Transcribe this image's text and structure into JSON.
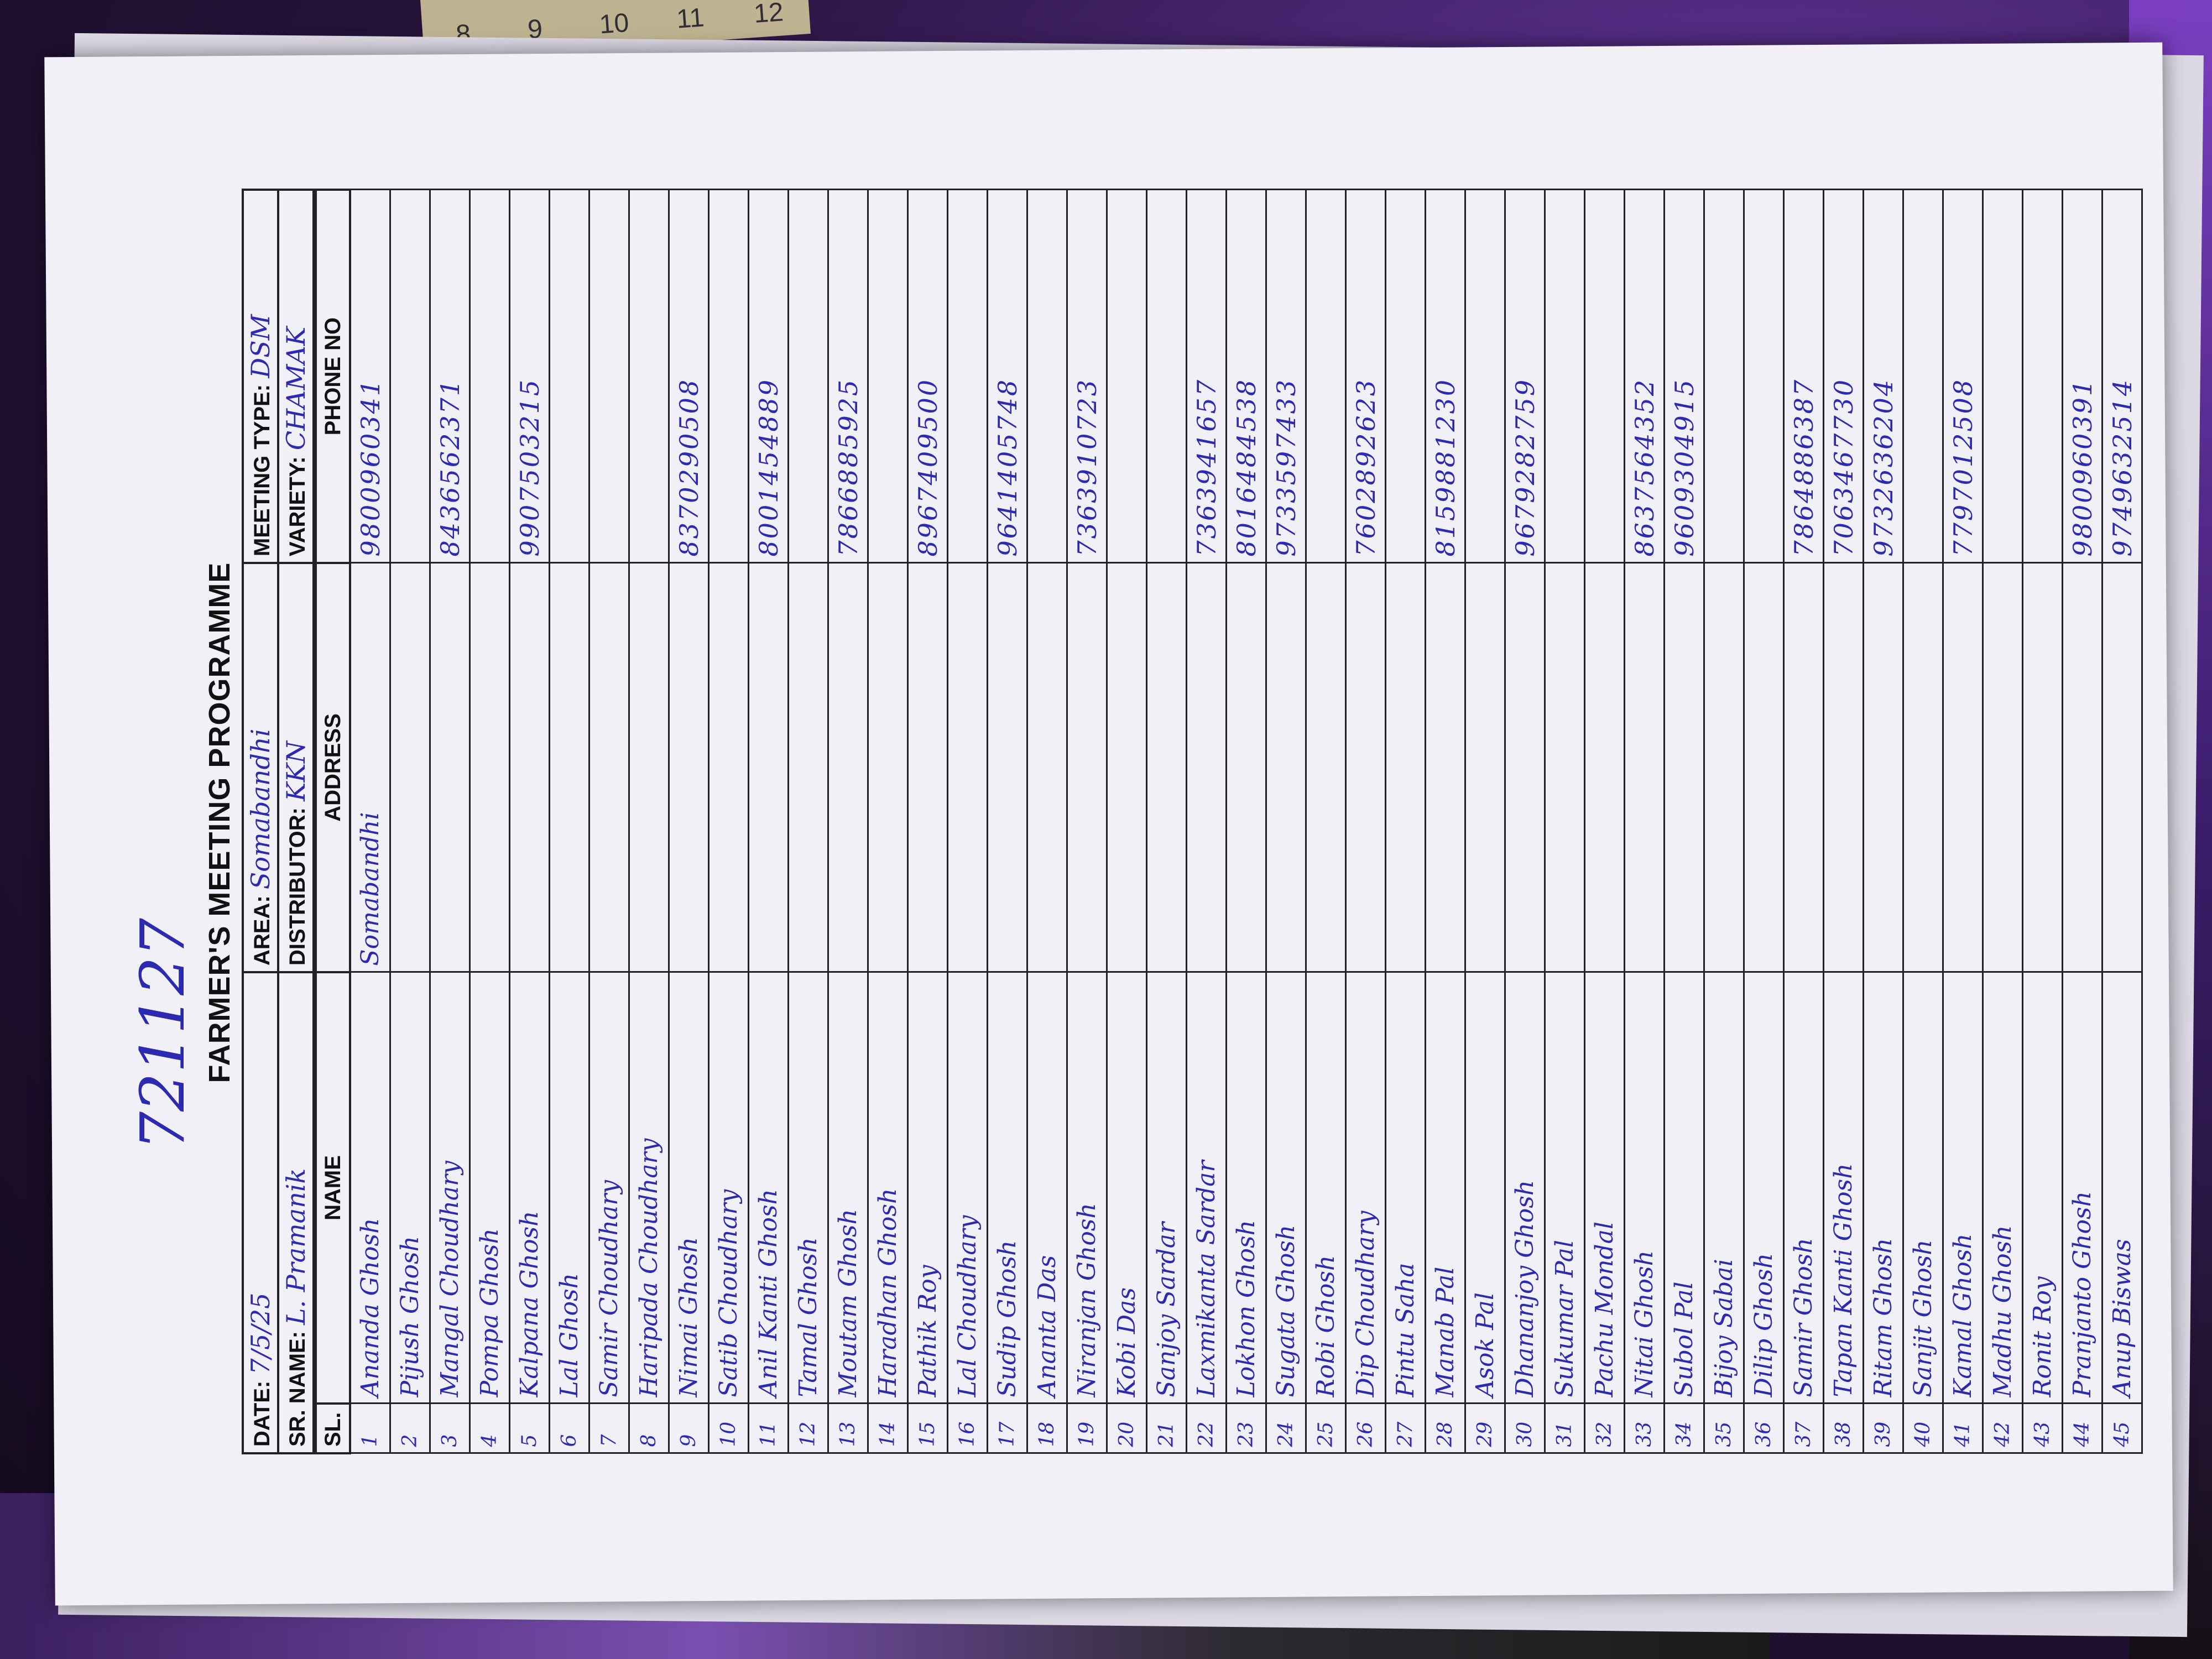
{
  "ruler": {
    "numbers": [
      "8",
      "9",
      "10",
      "11",
      "12"
    ]
  },
  "note": "721127",
  "form": {
    "title": "FARMER'S MEETING PROGRAMME",
    "date_label": "DATE:",
    "date": "7/5/25",
    "area_label": "AREA:",
    "area": "Somabandhi",
    "meeting_type_label": "MEETING TYPE:",
    "meeting_type": "DSM",
    "sr_name_label": "SR. NAME:",
    "sr_name": "L. Pramanik",
    "distributor_label": "DISTRIBUTOR:",
    "distributor": "KKN",
    "variety_label": "VARIETY:",
    "variety": "CHAMAK",
    "columns": [
      "SL. NO.",
      "NAME",
      "ADDRESS",
      "PHONE NO"
    ],
    "rows": [
      {
        "sl": "1",
        "name": "Ananda Ghosh",
        "address": "Somabandhi",
        "phone": "9800960341"
      },
      {
        "sl": "2",
        "name": "Pijush Ghosh",
        "address": "",
        "phone": ""
      },
      {
        "sl": "3",
        "name": "Mangal Choudhary",
        "address": "",
        "phone": "8436562371"
      },
      {
        "sl": "4",
        "name": "Pompa Ghosh",
        "address": "",
        "phone": ""
      },
      {
        "sl": "5",
        "name": "Kalpana Ghosh",
        "address": "",
        "phone": "9907503215"
      },
      {
        "sl": "6",
        "name": "Lal Ghosh",
        "address": "",
        "phone": ""
      },
      {
        "sl": "7",
        "name": "Samir Choudhary",
        "address": "",
        "phone": ""
      },
      {
        "sl": "8",
        "name": "Haripada Choudhary",
        "address": "",
        "phone": ""
      },
      {
        "sl": "9",
        "name": "Nimai Ghosh",
        "address": "",
        "phone": "8370290508"
      },
      {
        "sl": "10",
        "name": "Satib Choudhary",
        "address": "",
        "phone": ""
      },
      {
        "sl": "11",
        "name": "Anil Kanti Ghosh",
        "address": "",
        "phone": "8001454889"
      },
      {
        "sl": "12",
        "name": "Tamal Ghosh",
        "address": "",
        "phone": ""
      },
      {
        "sl": "13",
        "name": "Moutam Ghosh",
        "address": "",
        "phone": "7866885925"
      },
      {
        "sl": "14",
        "name": "Haradhan Ghosh",
        "address": "",
        "phone": ""
      },
      {
        "sl": "15",
        "name": "Pathik Roy",
        "address": "",
        "phone": "8967409500"
      },
      {
        "sl": "16",
        "name": "Lal Choudhary",
        "address": "",
        "phone": ""
      },
      {
        "sl": "17",
        "name": "Sudip Ghosh",
        "address": "",
        "phone": "9641405748"
      },
      {
        "sl": "18",
        "name": "Ananta Das",
        "address": "",
        "phone": ""
      },
      {
        "sl": "19",
        "name": "Niranjan Ghosh",
        "address": "",
        "phone": "7363910723"
      },
      {
        "sl": "20",
        "name": "Kobi Das",
        "address": "",
        "phone": ""
      },
      {
        "sl": "21",
        "name": "Sanjoy Sardar",
        "address": "",
        "phone": ""
      },
      {
        "sl": "22",
        "name": "Laxmikanta Sardar",
        "address": "",
        "phone": "7363941657"
      },
      {
        "sl": "23",
        "name": "Lokhon Ghosh",
        "address": "",
        "phone": "8016484538"
      },
      {
        "sl": "24",
        "name": "Sugata Ghosh",
        "address": "",
        "phone": "9733597433"
      },
      {
        "sl": "25",
        "name": "Robi Ghosh",
        "address": "",
        "phone": ""
      },
      {
        "sl": "26",
        "name": "Dip Choudhary",
        "address": "",
        "phone": "7602892623"
      },
      {
        "sl": "27",
        "name": "Pintu Saha",
        "address": "",
        "phone": ""
      },
      {
        "sl": "28",
        "name": "Manab Pal",
        "address": "",
        "phone": "8159881230"
      },
      {
        "sl": "29",
        "name": "Asok Pal",
        "address": "",
        "phone": ""
      },
      {
        "sl": "30",
        "name": "Dhananjoy Ghosh",
        "address": "",
        "phone": "9679282759"
      },
      {
        "sl": "31",
        "name": "Sukumar Pal",
        "address": "",
        "phone": ""
      },
      {
        "sl": "32",
        "name": "Pachu Mondal",
        "address": "",
        "phone": ""
      },
      {
        "sl": "33",
        "name": "Nitai Ghosh",
        "address": "",
        "phone": "8637564352"
      },
      {
        "sl": "34",
        "name": "Subol Pal",
        "address": "",
        "phone": "9609304915"
      },
      {
        "sl": "35",
        "name": "Bijoy Sabai",
        "address": "",
        "phone": ""
      },
      {
        "sl": "36",
        "name": "Dilip Ghosh",
        "address": "",
        "phone": ""
      },
      {
        "sl": "37",
        "name": "Samir Ghosh",
        "address": "",
        "phone": "7864886387"
      },
      {
        "sl": "38",
        "name": "Tapan Kanti Ghosh",
        "address": "",
        "phone": "7063467730"
      },
      {
        "sl": "39",
        "name": "Ritam Ghosh",
        "address": "",
        "phone": "9732636204"
      },
      {
        "sl": "40",
        "name": "Sanjit Ghosh",
        "address": "",
        "phone": ""
      },
      {
        "sl": "41",
        "name": "Kamal Ghosh",
        "address": "",
        "phone": "7797012508"
      },
      {
        "sl": "42",
        "name": "Madhu Ghosh",
        "address": "",
        "phone": ""
      },
      {
        "sl": "43",
        "name": "Ronit Roy",
        "address": "",
        "phone": ""
      },
      {
        "sl": "44",
        "name": "Pranjanto Ghosh",
        "address": "",
        "phone": "9800960391"
      },
      {
        "sl": "45",
        "name": "Anup Biswas",
        "address": "",
        "phone": "9749632514"
      }
    ]
  }
}
